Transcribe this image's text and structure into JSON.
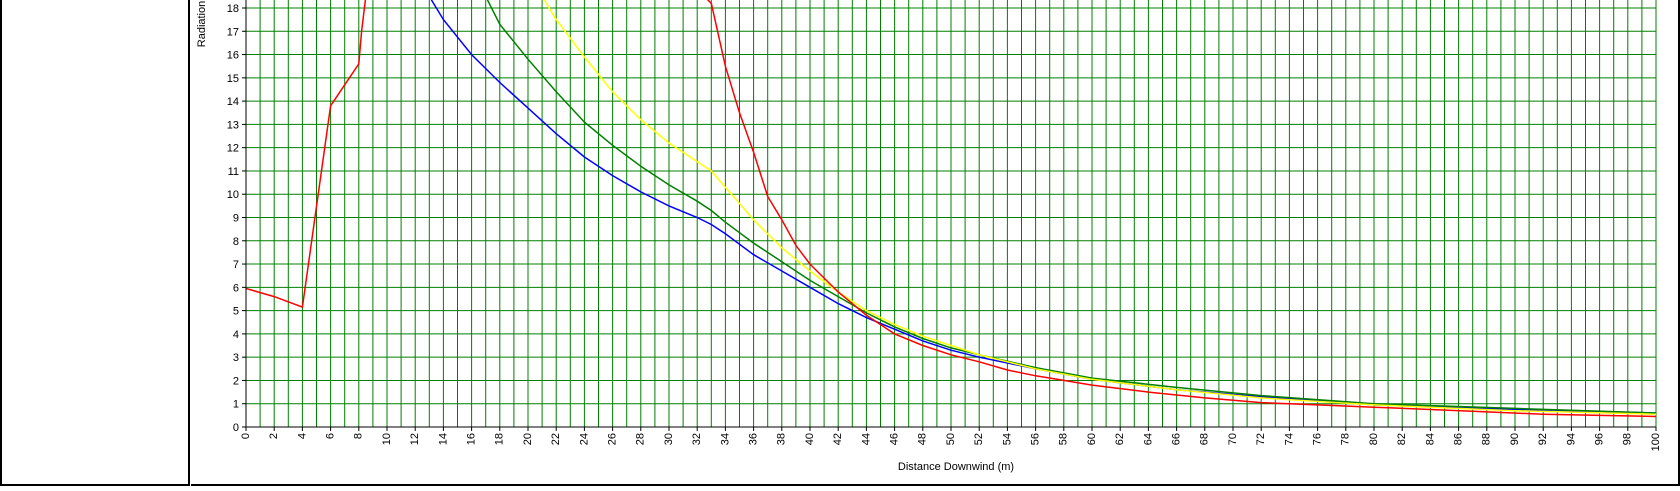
{
  "chart_data": {
    "type": "line",
    "title": "",
    "xlabel": "Distance Downwind (m)",
    "ylabel": "Radiation",
    "xlim": [
      0,
      100
    ],
    "ylim": [
      0,
      18
    ],
    "grid": true,
    "legend": "none",
    "x_ticks": [
      0,
      2,
      4,
      6,
      8,
      10,
      12,
      14,
      16,
      18,
      20,
      22,
      24,
      26,
      28,
      30,
      32,
      34,
      36,
      38,
      40,
      42,
      44,
      46,
      48,
      50,
      52,
      54,
      56,
      58,
      60,
      62,
      64,
      66,
      68,
      70,
      72,
      74,
      76,
      78,
      80,
      82,
      84,
      86,
      88,
      90,
      92,
      94,
      96,
      98,
      100
    ],
    "y_ticks": [
      0,
      1,
      2,
      3,
      4,
      5,
      6,
      7,
      8,
      9,
      10,
      11,
      12,
      13,
      14,
      15,
      16,
      17,
      18
    ],
    "colors": {
      "grid": "#008000",
      "axis": "#000000"
    },
    "series": [
      {
        "color": "#0000ff",
        "x": [
          13,
          14,
          16,
          18,
          20,
          22,
          24,
          26,
          28,
          30,
          32,
          33,
          34,
          36,
          38,
          40,
          42,
          44,
          46,
          48,
          50,
          52,
          56,
          60,
          66,
          72,
          80,
          90,
          100
        ],
        "y": [
          18.5,
          17.5,
          16,
          14.8,
          13.7,
          12.6,
          11.6,
          10.8,
          10.1,
          9.5,
          9,
          8.7,
          8.3,
          7.4,
          6.7,
          6.0,
          5.3,
          4.7,
          4.2,
          3.7,
          3.3,
          3.0,
          2.5,
          2.05,
          1.6,
          1.3,
          0.95,
          0.75,
          0.6
        ]
      },
      {
        "color": "#008000",
        "x": [
          17,
          18,
          20,
          22,
          24,
          26,
          28,
          30,
          32,
          33,
          34,
          36,
          38,
          40,
          42,
          44,
          46,
          48,
          50,
          52,
          56,
          60,
          66,
          72,
          80,
          90,
          100
        ],
        "y": [
          18.5,
          17.3,
          15.8,
          14.4,
          13.1,
          12.1,
          11.2,
          10.4,
          9.7,
          9.3,
          8.8,
          7.9,
          7.1,
          6.3,
          5.6,
          4.9,
          4.3,
          3.8,
          3.4,
          3.1,
          2.55,
          2.1,
          1.7,
          1.35,
          1.0,
          0.8,
          0.6
        ]
      },
      {
        "color": "#ffff00",
        "x": [
          21,
          22,
          24,
          26,
          28,
          30,
          32,
          33,
          34,
          36,
          38,
          40,
          42,
          44,
          46,
          48,
          50,
          52,
          56,
          60,
          66,
          72,
          80,
          90,
          100
        ],
        "y": [
          18.5,
          17.5,
          15.9,
          14.4,
          13.2,
          12.2,
          11.4,
          11.0,
          10.3,
          8.9,
          7.7,
          6.7,
          5.8,
          5.0,
          4.4,
          3.9,
          3.5,
          3.1,
          2.5,
          2.05,
          1.6,
          1.25,
          0.95,
          0.7,
          0.55
        ]
      },
      {
        "color": "#ff0000",
        "x": [
          0,
          2,
          4,
          6,
          8,
          8.2,
          8.4,
          8.6,
          32,
          32.5,
          33,
          34,
          35,
          36,
          37,
          38,
          39,
          40,
          42,
          44,
          46,
          48,
          50,
          52,
          54,
          56,
          58,
          60,
          64,
          68,
          72,
          76,
          80,
          84,
          88,
          92,
          96,
          100
        ],
        "y": [
          5.95,
          5.6,
          5.15,
          13.8,
          15.6,
          17,
          18,
          19,
          19,
          18.5,
          18.2,
          15.5,
          13.5,
          11.8,
          9.9,
          8.9,
          7.8,
          7.0,
          5.8,
          4.8,
          4.0,
          3.5,
          3.1,
          2.8,
          2.45,
          2.2,
          2.0,
          1.8,
          1.5,
          1.25,
          1.05,
          0.95,
          0.85,
          0.75,
          0.65,
          0.55,
          0.5,
          0.45
        ]
      }
    ]
  }
}
